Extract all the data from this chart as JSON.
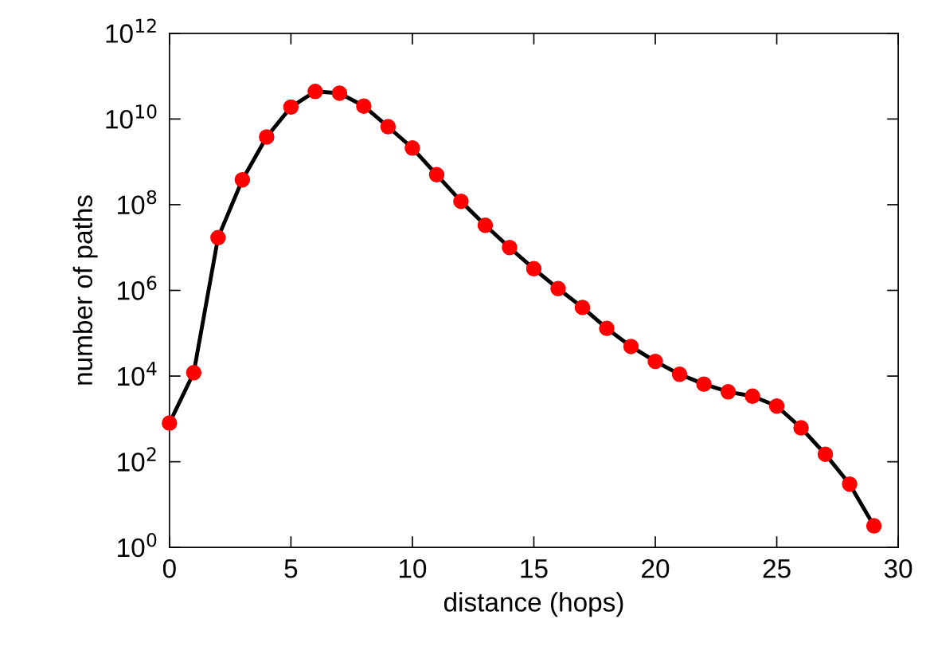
{
  "chart_data": {
    "type": "line",
    "xlabel": "distance (hops)",
    "ylabel": "number of paths",
    "log": "y",
    "marker": "circle",
    "line_style": "solid",
    "grid": false,
    "x": [
      0,
      1,
      2,
      3,
      4,
      5,
      6,
      7,
      8,
      9,
      10,
      11,
      12,
      13,
      14,
      15,
      16,
      17,
      18,
      19,
      20,
      21,
      22,
      23,
      24,
      25,
      26,
      27,
      28,
      29
    ],
    "series": [
      {
        "color": "#ff0000",
        "values": [
          800,
          12000,
          17000000,
          380000000,
          3800000000,
          19000000000,
          44000000000,
          40000000000,
          20000000000,
          6600000000,
          2100000000,
          500000000,
          120000000,
          33000000,
          10000000,
          3200000,
          1100000,
          400000,
          130000,
          49000,
          22000,
          11000,
          6500,
          4300,
          3400,
          2000,
          620,
          150,
          30,
          3.2
        ]
      }
    ],
    "xlim": [
      0,
      30
    ],
    "xticks": [
      0,
      5,
      10,
      15,
      20,
      25,
      30
    ],
    "ylim": [
      1,
      1000000000000
    ],
    "yticks": [
      {
        "value": 1,
        "label": "10$^{0}$"
      },
      {
        "value": 100,
        "label": "10$^{2}$"
      },
      {
        "value": 10000,
        "label": "10$^{4}$"
      },
      {
        "value": 1000000,
        "label": "10$^{6}$"
      },
      {
        "value": 100000000,
        "label": "10$^{8}$"
      },
      {
        "value": 10000000000,
        "label": "10$^{10}$"
      },
      {
        "value": 1000000000000,
        "label": "10$^{12}$"
      }
    ]
  }
}
